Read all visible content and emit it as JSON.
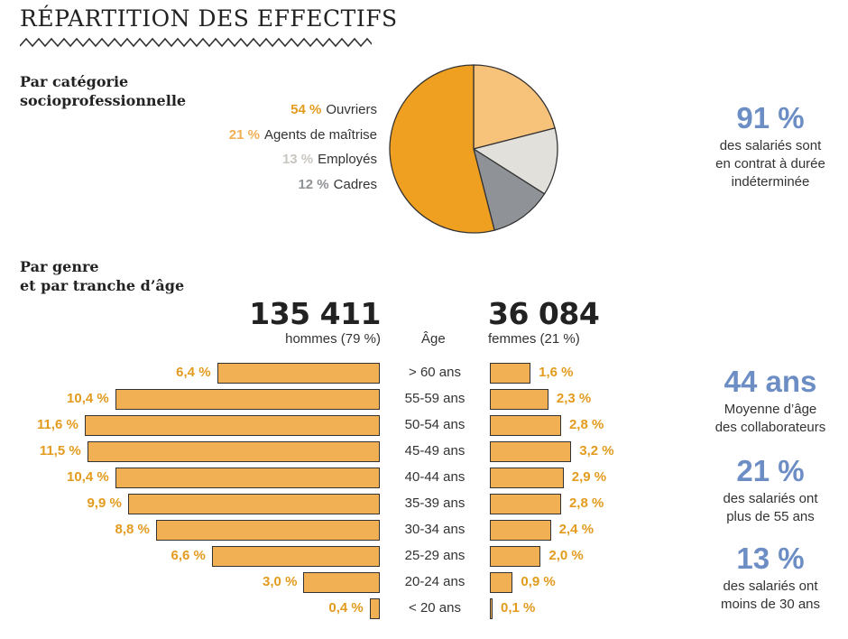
{
  "title": "RÉPARTITION DES EFFECTIFS",
  "colors": {
    "orange": "#f0a020",
    "orange_light": "#f7c27a",
    "grey_light": "#e2e0da",
    "grey_dark": "#8f9296",
    "bar": "#f2b055",
    "blue": "#6d8ec4"
  },
  "section_csp": {
    "line1": "Par catégorie",
    "line2": "socioprofessionnelle"
  },
  "section_age": {
    "line1": "Par genre",
    "line2": "et par tranche d’âge"
  },
  "chart_data": [
    {
      "type": "pie",
      "slices": [
        {
          "label": "Ouvriers",
          "pct_label": "54 %",
          "value": 54
        },
        {
          "label": "Agents de maîtrise",
          "pct_label": "21 %",
          "value": 21
        },
        {
          "label": "Employés",
          "pct_label": "13 %",
          "value": 13
        },
        {
          "label": "Cadres",
          "pct_label": "12 %",
          "value": 12
        }
      ]
    },
    {
      "type": "bar",
      "center_header": "Âge",
      "men": {
        "total": "135 411",
        "label": "hommes (79 %)"
      },
      "women": {
        "total": "36 084",
        "label": "femmes (21 %)"
      },
      "categories": [
        "> 60 ans",
        "55-59 ans",
        "50-54 ans",
        "45-49 ans",
        "40-44 ans",
        "35-39 ans",
        "30-34 ans",
        "25-29 ans",
        "20-24 ans",
        "< 20 ans"
      ],
      "series": [
        {
          "name": "hommes (79 %)",
          "values": [
            6.4,
            10.4,
            11.6,
            11.5,
            10.4,
            9.9,
            8.8,
            6.6,
            3.0,
            0.4
          ],
          "labels": [
            "6,4 %",
            "10,4 %",
            "11,6 %",
            "11,5 %",
            "10,4 %",
            "9,9 %",
            "8,8 %",
            "6,6 %",
            "3,0 %",
            "0,4 %"
          ]
        },
        {
          "name": "femmes (21 %)",
          "values": [
            1.6,
            2.3,
            2.8,
            3.2,
            2.9,
            2.8,
            2.4,
            2.0,
            0.9,
            0.1
          ],
          "labels": [
            "1,6 %",
            "2,3 %",
            "2,8 %",
            "3,2 %",
            "2,9 %",
            "2,8 %",
            "2,4 %",
            "2,0 %",
            "0,9 %",
            "0,1 %"
          ]
        }
      ]
    }
  ],
  "stats": {
    "cdi": {
      "value": "91 %",
      "lines": [
        "des salariés sont",
        "en contrat à durée",
        "indéterminée"
      ]
    },
    "age_avg": {
      "value": "44 ans",
      "lines": [
        "Moyenne d’âge",
        "des collaborateurs"
      ]
    },
    "over55": {
      "value": "21 %",
      "lines": [
        "des salariés ont",
        "plus de 55 ans"
      ]
    },
    "under30": {
      "value": "13 %",
      "lines": [
        "des salariés ont",
        "moins de 30 ans"
      ]
    }
  }
}
